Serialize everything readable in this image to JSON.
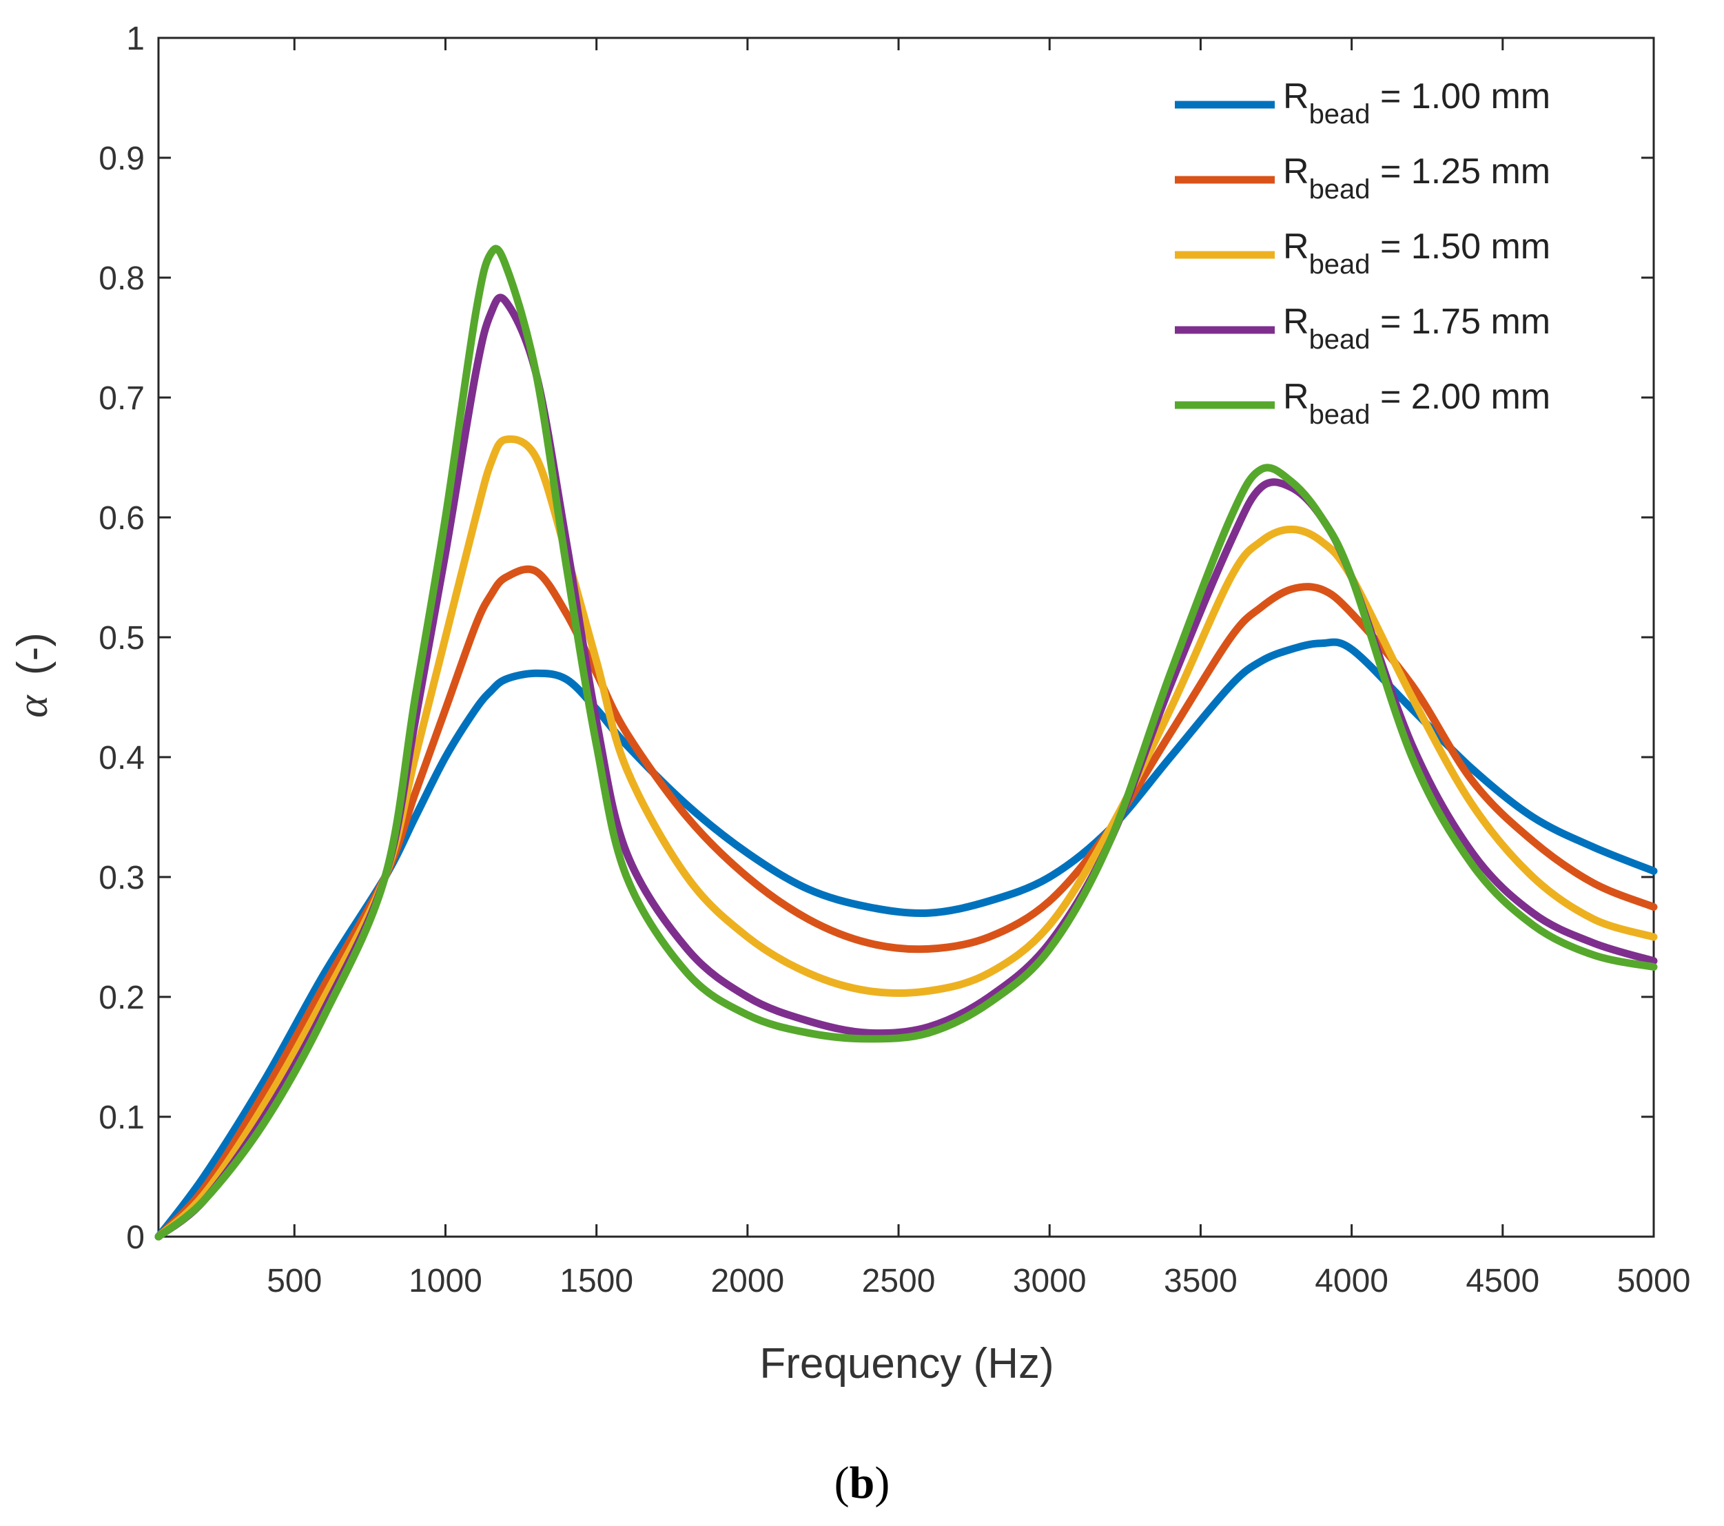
{
  "chart_data": {
    "type": "line",
    "title": "",
    "xlabel": "Frequency (Hz)",
    "ylabel_symbol": "α",
    "ylabel_unit": "(-)",
    "xlim": [
      50,
      5000
    ],
    "ylim": [
      0,
      1
    ],
    "xticks": [
      500,
      1000,
      1500,
      2000,
      2500,
      3000,
      3500,
      4000,
      4500,
      5000
    ],
    "yticks": [
      0,
      0.1,
      0.2,
      0.3,
      0.4,
      0.5,
      0.6,
      0.7,
      0.8,
      0.9,
      1
    ],
    "ytick_labels": [
      "0",
      "0.1",
      "0.2",
      "0.3",
      "0.4",
      "0.5",
      "0.6",
      "0.7",
      "0.8",
      "0.9",
      "1"
    ],
    "legend_position": "top-right",
    "x": [
      50,
      200,
      400,
      600,
      800,
      900,
      1000,
      1100,
      1150,
      1200,
      1300,
      1400,
      1500,
      1600,
      1800,
      2000,
      2200,
      2400,
      2600,
      2800,
      3000,
      3200,
      3400,
      3600,
      3700,
      3800,
      3900,
      4000,
      4200,
      4400,
      4600,
      4800,
      5000
    ],
    "series": [
      {
        "name": "R",
        "sub": "bead",
        "suffix": " = 1.00 mm",
        "color": "#0072BD",
        "values": [
          0.0,
          0.05,
          0.13,
          0.22,
          0.3,
          0.35,
          0.4,
          0.44,
          0.455,
          0.465,
          0.47,
          0.465,
          0.44,
          0.41,
          0.36,
          0.32,
          0.29,
          0.275,
          0.27,
          0.28,
          0.3,
          0.34,
          0.4,
          0.46,
          0.48,
          0.49,
          0.495,
          0.49,
          0.44,
          0.39,
          0.35,
          0.325,
          0.305
        ]
      },
      {
        "name": "R",
        "sub": "bead",
        "suffix": " = 1.25 mm",
        "color": "#D95319",
        "values": [
          0.0,
          0.04,
          0.12,
          0.21,
          0.3,
          0.37,
          0.44,
          0.51,
          0.535,
          0.55,
          0.555,
          0.52,
          0.47,
          0.42,
          0.35,
          0.3,
          0.265,
          0.245,
          0.24,
          0.25,
          0.28,
          0.34,
          0.42,
          0.5,
          0.525,
          0.54,
          0.54,
          0.52,
          0.46,
          0.38,
          0.33,
          0.295,
          0.275
        ]
      },
      {
        "name": "R",
        "sub": "bead",
        "suffix": " = 1.50 mm",
        "color": "#EDB120",
        "values": [
          0.0,
          0.035,
          0.11,
          0.2,
          0.3,
          0.4,
          0.5,
          0.6,
          0.645,
          0.665,
          0.65,
          0.57,
          0.48,
          0.39,
          0.3,
          0.25,
          0.22,
          0.205,
          0.205,
          0.22,
          0.26,
          0.34,
          0.44,
          0.55,
          0.58,
          0.59,
          0.58,
          0.55,
          0.45,
          0.36,
          0.3,
          0.265,
          0.25
        ]
      },
      {
        "name": "R",
        "sub": "bead",
        "suffix": " = 1.75 mm",
        "color": "#7E2F8E",
        "values": [
          0.0,
          0.03,
          0.1,
          0.19,
          0.3,
          0.43,
          0.57,
          0.72,
          0.77,
          0.78,
          0.72,
          0.58,
          0.43,
          0.32,
          0.24,
          0.2,
          0.18,
          0.17,
          0.175,
          0.2,
          0.245,
          0.33,
          0.46,
          0.58,
          0.625,
          0.625,
          0.6,
          0.55,
          0.41,
          0.32,
          0.27,
          0.245,
          0.23
        ]
      },
      {
        "name": "R",
        "sub": "bead",
        "suffix": " = 2.00 mm",
        "color": "#56A82C",
        "values": [
          0.0,
          0.03,
          0.095,
          0.185,
          0.3,
          0.45,
          0.6,
          0.77,
          0.82,
          0.81,
          0.72,
          0.56,
          0.41,
          0.3,
          0.22,
          0.185,
          0.17,
          0.165,
          0.17,
          0.195,
          0.24,
          0.33,
          0.47,
          0.6,
          0.64,
          0.63,
          0.6,
          0.55,
          0.4,
          0.31,
          0.26,
          0.235,
          0.225
        ]
      }
    ]
  },
  "caption": {
    "open": "(",
    "letter": "b",
    "close": ")"
  }
}
